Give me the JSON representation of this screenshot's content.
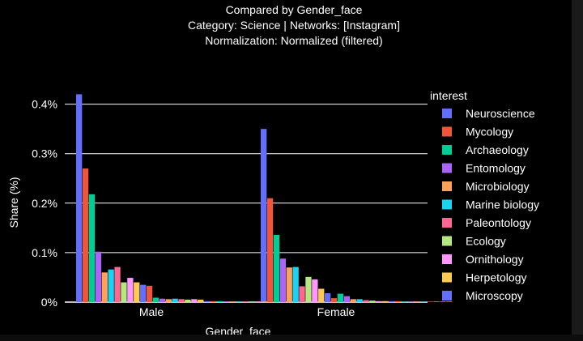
{
  "chart_data": {
    "type": "bar",
    "title_lines": [
      "Compared by Gender_face",
      "Category: Science | Networks: [Instagram]",
      "Normalization: Normalized (filtered)"
    ],
    "categories": [
      "Male",
      "Female"
    ],
    "xlabel": "Gender_face",
    "ylabel": "Share (%)",
    "ylim": [
      0,
      0.47
    ],
    "yticks": [
      {
        "value": 0,
        "label": "0%"
      },
      {
        "value": 0.1,
        "label": "0.1%"
      },
      {
        "value": 0.2,
        "label": "0.2%"
      },
      {
        "value": 0.3,
        "label": "0.3%"
      },
      {
        "value": 0.4,
        "label": "0.4%"
      }
    ],
    "grid": true,
    "legend": {
      "title": "interest",
      "placement": "right"
    },
    "series": [
      {
        "name": "Neuroscience",
        "color": "#636efa",
        "values": [
          0.42,
          0.35
        ]
      },
      {
        "name": "Mycology",
        "color": "#ef553b",
        "values": [
          0.27,
          0.21
        ]
      },
      {
        "name": "Archaeology",
        "color": "#00cc96",
        "values": [
          0.218,
          0.136
        ]
      },
      {
        "name": "Entomology",
        "color": "#ab63fa",
        "values": [
          0.102,
          0.088
        ]
      },
      {
        "name": "Microbiology",
        "color": "#ffa15a",
        "values": [
          0.06,
          0.07
        ]
      },
      {
        "name": "Marine biology",
        "color": "#19d3f3",
        "values": [
          0.066,
          0.071
        ]
      },
      {
        "name": "Paleontology",
        "color": "#ff6692",
        "values": [
          0.071,
          0.032
        ]
      },
      {
        "name": "Ecology",
        "color": "#b6e880",
        "values": [
          0.04,
          0.051
        ]
      },
      {
        "name": "Ornithology",
        "color": "#ff97ff",
        "values": [
          0.049,
          0.046
        ]
      },
      {
        "name": "Herpetology",
        "color": "#fecb52",
        "values": [
          0.04,
          0.027
        ]
      },
      {
        "name": "Microscopy",
        "color": "#636efa",
        "values": [
          0.035,
          0.018
        ]
      },
      {
        "name": "",
        "color": "#ef553b",
        "values": [
          0.033,
          0.008
        ]
      },
      {
        "name": "",
        "color": "#00cc96",
        "values": [
          0.009,
          0.017
        ]
      },
      {
        "name": "",
        "color": "#ab63fa",
        "values": [
          0.007,
          0.012
        ]
      },
      {
        "name": "",
        "color": "#ffa15a",
        "values": [
          0.006,
          0.006
        ]
      },
      {
        "name": "",
        "color": "#19d3f3",
        "values": [
          0.007,
          0.006
        ]
      },
      {
        "name": "",
        "color": "#ff6692",
        "values": [
          0.006,
          0.004
        ]
      },
      {
        "name": "",
        "color": "#b6e880",
        "values": [
          0.005,
          0.003
        ]
      },
      {
        "name": "",
        "color": "#ff97ff",
        "values": [
          0.006,
          0.002
        ]
      },
      {
        "name": "",
        "color": "#fecb52",
        "values": [
          0.005,
          0.002
        ]
      },
      {
        "name": "",
        "color": "#636efa",
        "values": [
          0.002,
          0.002
        ]
      },
      {
        "name": "",
        "color": "#ef553b",
        "values": [
          0.002,
          0.002
        ]
      },
      {
        "name": "",
        "color": "#00cc96",
        "values": [
          0.002,
          0.001
        ]
      },
      {
        "name": "",
        "color": "#ab63fa",
        "values": [
          0.001,
          0.001
        ]
      },
      {
        "name": "",
        "color": "#ffa15a",
        "values": [
          0.001,
          0.001
        ]
      },
      {
        "name": "",
        "color": "#19d3f3",
        "values": [
          0.001,
          0.001
        ]
      },
      {
        "name": "",
        "color": "#ff6692",
        "values": [
          0.001,
          0.001
        ]
      },
      {
        "name": "",
        "color": "#b6e880",
        "values": [
          0.001,
          0.001
        ]
      },
      {
        "name": "",
        "color": "#ff97ff",
        "values": [
          0.001,
          0.001
        ]
      },
      {
        "name": "",
        "color": "#fecb52",
        "values": [
          0.001,
          0.001
        ]
      }
    ]
  }
}
